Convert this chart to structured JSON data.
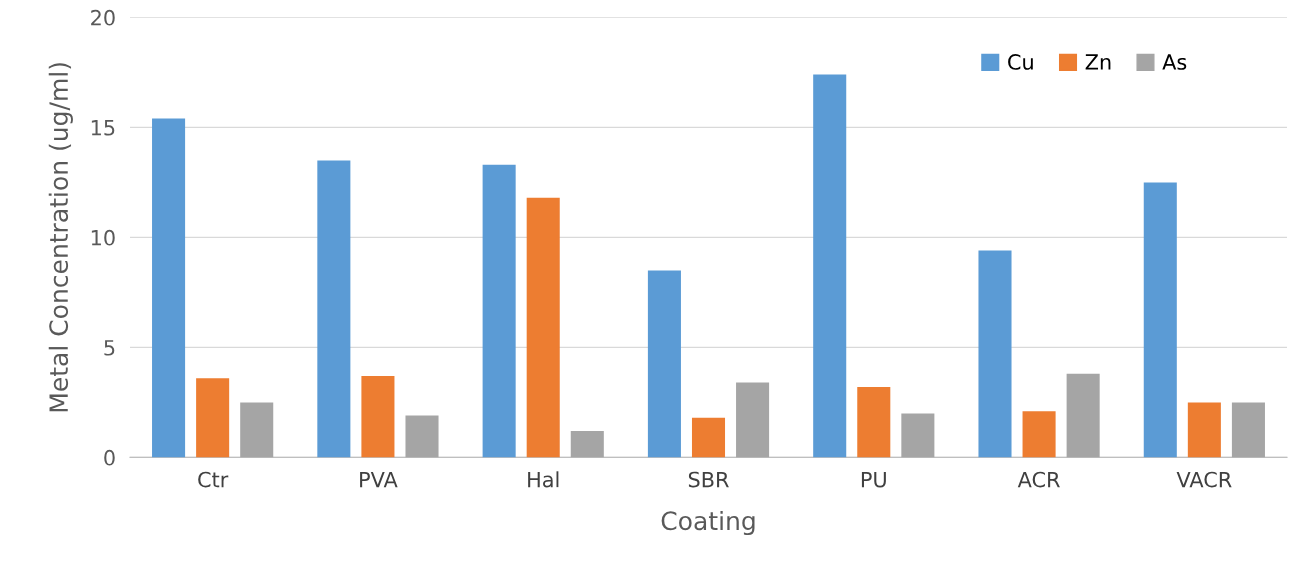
{
  "chart_data": {
    "type": "bar",
    "xlabel": "Coating",
    "ylabel": "Metal Concentration (ug/ml)",
    "categories": [
      "Ctr",
      "PVA",
      "Hal",
      "SBR",
      "PU",
      "ACR",
      "VACR"
    ],
    "series": [
      {
        "name": "Cu",
        "color": "#5b9bd5",
        "values": [
          15.4,
          13.5,
          13.3,
          8.5,
          17.4,
          9.4,
          12.5
        ]
      },
      {
        "name": "Zn",
        "color": "#ed7d31",
        "values": [
          3.6,
          3.7,
          11.8,
          1.8,
          3.2,
          2.1,
          2.5
        ]
      },
      {
        "name": "As",
        "color": "#a5a5a5",
        "values": [
          2.5,
          1.9,
          1.2,
          3.4,
          2.0,
          3.8,
          2.5
        ]
      }
    ],
    "ylim": [
      0,
      20
    ],
    "yticks": [
      0,
      5,
      10,
      15,
      20
    ],
    "grid": "y",
    "legend": "top right"
  }
}
